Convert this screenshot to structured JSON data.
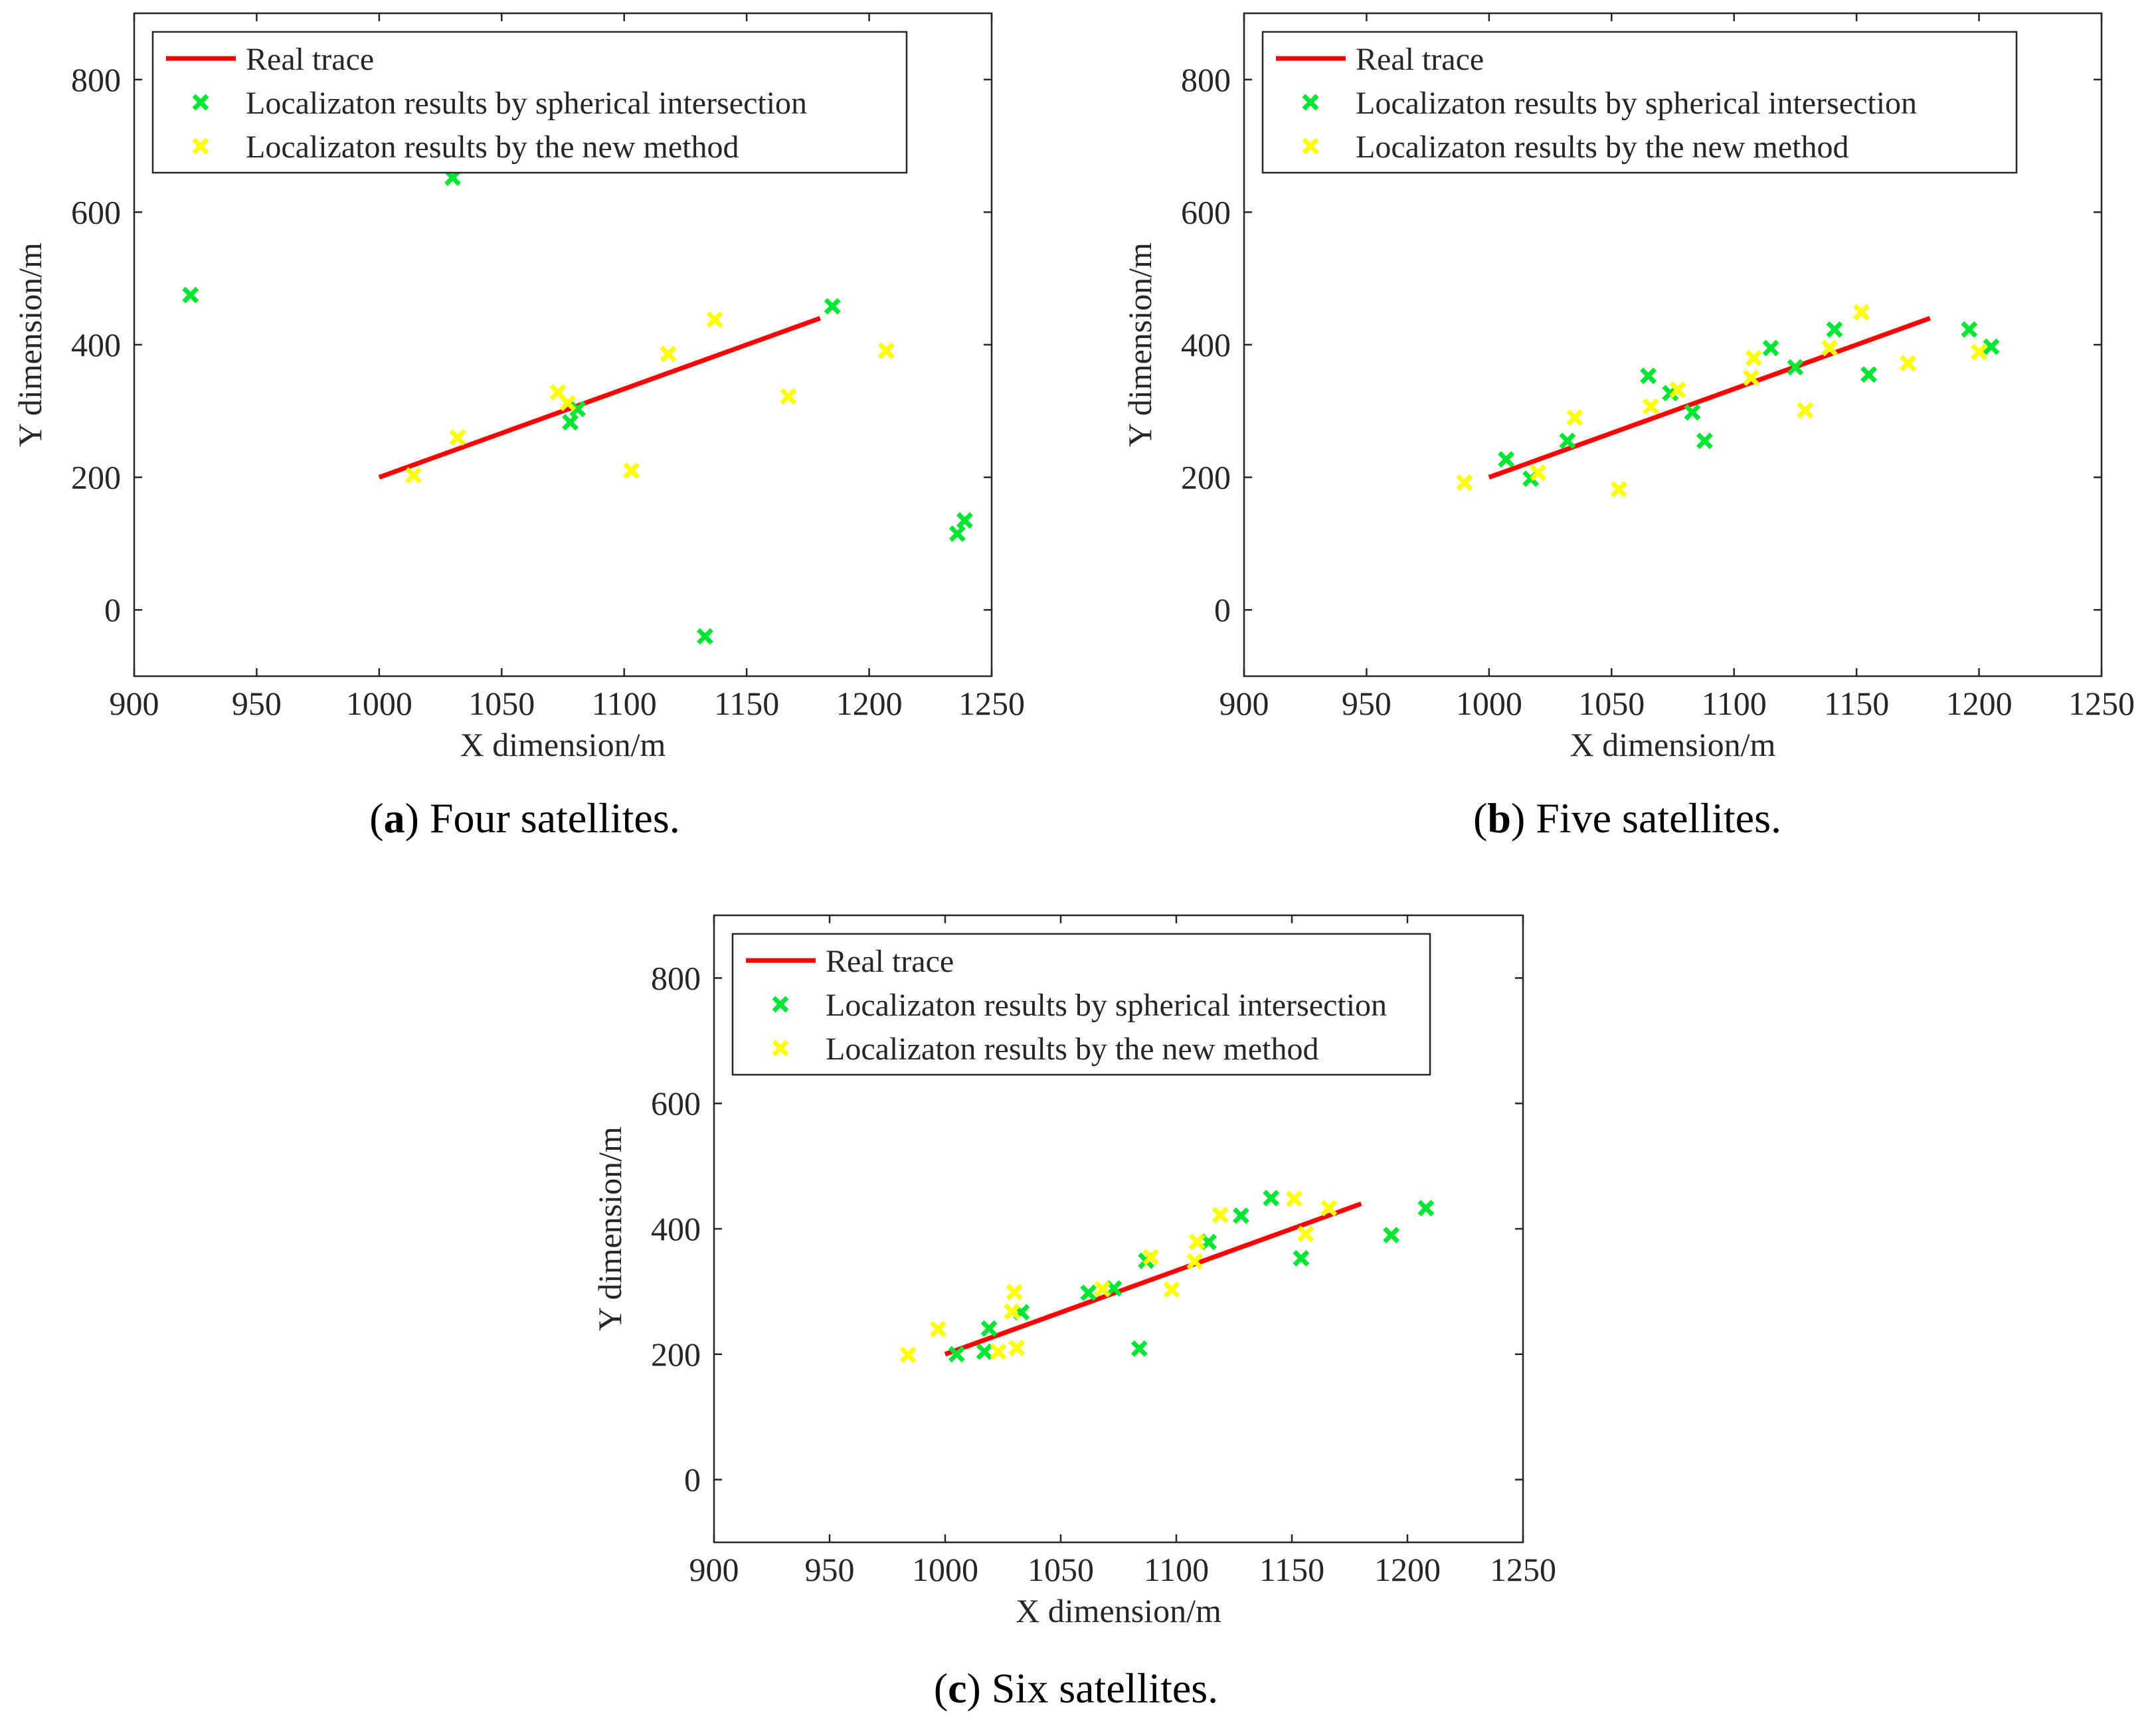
{
  "figure": {
    "captions": [
      {
        "label": "a",
        "text": "Four satellites."
      },
      {
        "label": "b",
        "text": "Five satellites."
      },
      {
        "label": "c",
        "text": "Six satellites."
      }
    ]
  },
  "colors": {
    "real_trace": "#ff0000",
    "spherical": "#00e632",
    "new_method": "#ffff00",
    "axis": "#262626",
    "legend_border": "#262626"
  },
  "chart_data": [
    {
      "type": "scatter",
      "panel": "a",
      "xlabel": "X dimension/m",
      "ylabel": "Y dimension/m",
      "xlim": [
        900,
        1250
      ],
      "ylim": [
        -100,
        900
      ],
      "xticks": [
        900,
        950,
        1000,
        1050,
        1100,
        1150,
        1200,
        1250
      ],
      "yticks": [
        0,
        200,
        400,
        600,
        800
      ],
      "legend_position": "top-left",
      "series": [
        {
          "name": "Real trace",
          "kind": "line",
          "color": "#ff0000",
          "points": [
            [
              1000,
              200
            ],
            [
              1180,
              440
            ]
          ]
        },
        {
          "name": "Localizaton results by spherical intersection",
          "kind": "marker",
          "color": "#00e632",
          "points": [
            [
              923,
              475
            ],
            [
              1030,
              652
            ],
            [
              1078,
              283
            ],
            [
              1081,
              303
            ],
            [
              1133,
              -40
            ],
            [
              1185,
              458
            ],
            [
              1236,
              115
            ],
            [
              1239,
              135
            ]
          ]
        },
        {
          "name": "Localizaton results by the new method",
          "kind": "marker",
          "color": "#ffff00",
          "points": [
            [
              1014,
              203
            ],
            [
              1032,
              260
            ],
            [
              1073,
              328
            ],
            [
              1077,
              312
            ],
            [
              1103,
              210
            ],
            [
              1118,
              386
            ],
            [
              1137,
              438
            ],
            [
              1167,
              322
            ],
            [
              1207,
              391
            ]
          ]
        }
      ]
    },
    {
      "type": "scatter",
      "panel": "b",
      "xlabel": "X dimension/m",
      "ylabel": "Y dimension/m",
      "xlim": [
        900,
        1250
      ],
      "ylim": [
        -100,
        900
      ],
      "xticks": [
        900,
        950,
        1000,
        1050,
        1100,
        1150,
        1200,
        1250
      ],
      "yticks": [
        0,
        200,
        400,
        600,
        800
      ],
      "legend_position": "top-left",
      "series": [
        {
          "name": "Real trace",
          "kind": "line",
          "color": "#ff0000",
          "points": [
            [
              1000,
              200
            ],
            [
              1180,
              440
            ]
          ]
        },
        {
          "name": "Localizaton results by spherical intersection",
          "kind": "marker",
          "color": "#00e632",
          "points": [
            [
              1007,
              227
            ],
            [
              1017,
              198
            ],
            [
              1032,
              255
            ],
            [
              1065,
              353
            ],
            [
              1074,
              327
            ],
            [
              1083,
              298
            ],
            [
              1088,
              255
            ],
            [
              1115,
              395
            ],
            [
              1125,
              366
            ],
            [
              1141,
              423
            ],
            [
              1155,
              355
            ],
            [
              1196,
              423
            ],
            [
              1205,
              397
            ]
          ]
        },
        {
          "name": "Localizaton results by the new method",
          "kind": "marker",
          "color": "#ffff00",
          "points": [
            [
              990,
              192
            ],
            [
              1020,
              207
            ],
            [
              1035,
              290
            ],
            [
              1053,
              182
            ],
            [
              1066,
              307
            ],
            [
              1077,
              332
            ],
            [
              1107,
              350
            ],
            [
              1108,
              380
            ],
            [
              1129,
              301
            ],
            [
              1139,
              395
            ],
            [
              1152,
              449
            ],
            [
              1171,
              372
            ],
            [
              1200,
              389
            ]
          ]
        }
      ]
    },
    {
      "type": "scatter",
      "panel": "c",
      "xlabel": "X dimension/m",
      "ylabel": "Y dimension/m",
      "xlim": [
        900,
        1250
      ],
      "ylim": [
        -100,
        900
      ],
      "xticks": [
        900,
        950,
        1000,
        1050,
        1100,
        1150,
        1200,
        1250
      ],
      "yticks": [
        0,
        200,
        400,
        600,
        800
      ],
      "legend_position": "top-left",
      "series": [
        {
          "name": "Real trace",
          "kind": "line",
          "color": "#ff0000",
          "points": [
            [
              1000,
              200
            ],
            [
              1180,
              440
            ]
          ]
        },
        {
          "name": "Localizaton results by spherical intersection",
          "kind": "marker",
          "color": "#00e632",
          "points": [
            [
              1005,
              200
            ],
            [
              1017,
              204
            ],
            [
              1019,
              241
            ],
            [
              1033,
              267
            ],
            [
              1062,
              298
            ],
            [
              1073,
              305
            ],
            [
              1084,
              209
            ],
            [
              1087,
              349
            ],
            [
              1114,
              379
            ],
            [
              1128,
              421
            ],
            [
              1141,
              449
            ],
            [
              1154,
              353
            ],
            [
              1193,
              390
            ],
            [
              1208,
              433
            ]
          ]
        },
        {
          "name": "Localizaton results by the new method",
          "kind": "marker",
          "color": "#ffff00",
          "points": [
            [
              984,
              199
            ],
            [
              997,
              240
            ],
            [
              1023,
              204
            ],
            [
              1029,
              268
            ],
            [
              1030,
              299
            ],
            [
              1031,
              210
            ],
            [
              1068,
              304
            ],
            [
              1089,
              355
            ],
            [
              1098,
              303
            ],
            [
              1108,
              348
            ],
            [
              1109,
              379
            ],
            [
              1119,
              422
            ],
            [
              1151,
              448
            ],
            [
              1156,
              392
            ],
            [
              1166,
              433
            ]
          ]
        }
      ]
    }
  ]
}
